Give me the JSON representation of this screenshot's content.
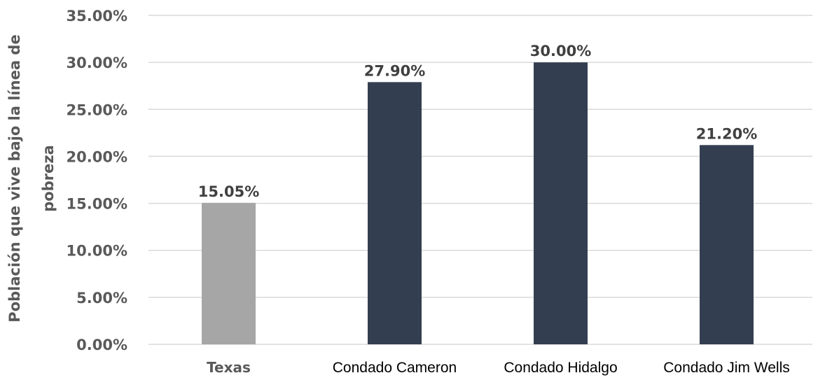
{
  "chart_data": {
    "type": "bar",
    "categories": [
      "Texas",
      "Condado Cameron",
      "Condado Hidalgo",
      "Condado Jim Wells"
    ],
    "values": [
      15.05,
      27.9,
      30.0,
      21.2
    ],
    "data_labels": [
      "15.05%",
      "27.90%",
      "30.00%",
      "21.20%"
    ],
    "colors": [
      "#a6a6a6",
      "#333f50",
      "#333f50",
      "#333f50"
    ],
    "ylabel_lines": [
      "Población que vive bajo la línea de",
      "pobreza"
    ],
    "xlabel": "",
    "ylim": [
      0,
      35
    ],
    "yticks": [
      0,
      5,
      10,
      15,
      20,
      25,
      30,
      35
    ],
    "ytick_labels": [
      "0.00%",
      "5.00%",
      "10.00%",
      "15.00%",
      "20.00%",
      "25.00%",
      "30.00%",
      "35.00%"
    ],
    "grid": true,
    "legend": "none"
  }
}
